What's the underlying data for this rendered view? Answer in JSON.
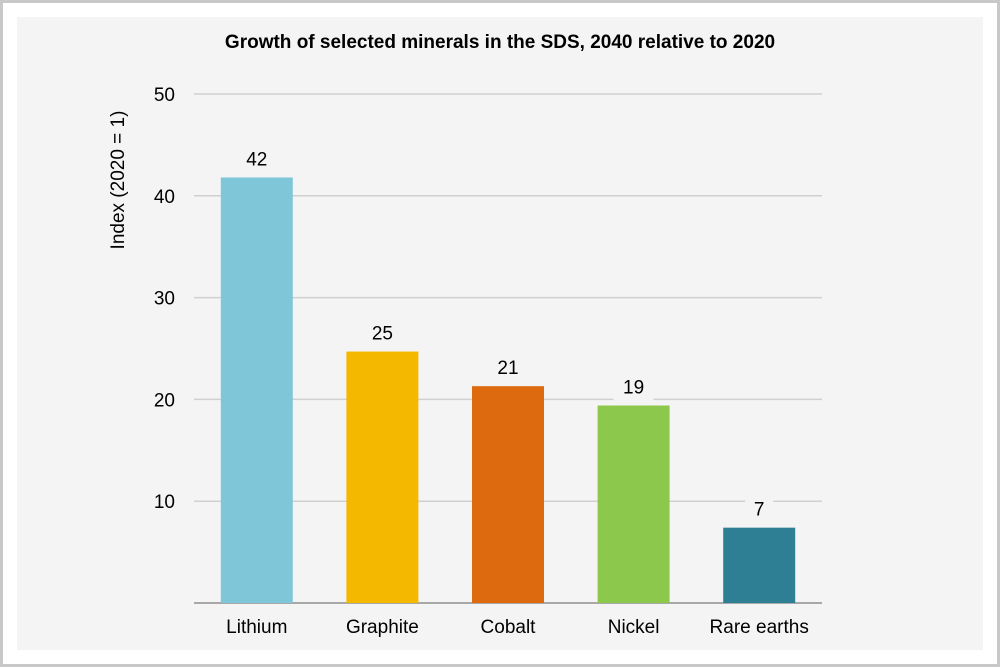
{
  "chart_data": {
    "type": "bar",
    "title": "Growth of selected minerals in the SDS, 2040 relative to 2020",
    "xlabel": "",
    "ylabel": "Index (2020 = 1)",
    "ylim": [
      0,
      50
    ],
    "yticks": [
      10,
      20,
      30,
      40,
      50
    ],
    "grid": true,
    "categories": [
      "Lithium",
      "Graphite",
      "Cobalt",
      "Nickel",
      "Rare earths"
    ],
    "values": [
      41.8,
      24.7,
      21.3,
      19.4,
      7.4
    ],
    "data_labels": [
      "42",
      "25",
      "21",
      "19",
      "7"
    ],
    "colors": [
      "#7fc6d9",
      "#f5b800",
      "#dd6a0f",
      "#8cc84b",
      "#2e7f94"
    ]
  }
}
